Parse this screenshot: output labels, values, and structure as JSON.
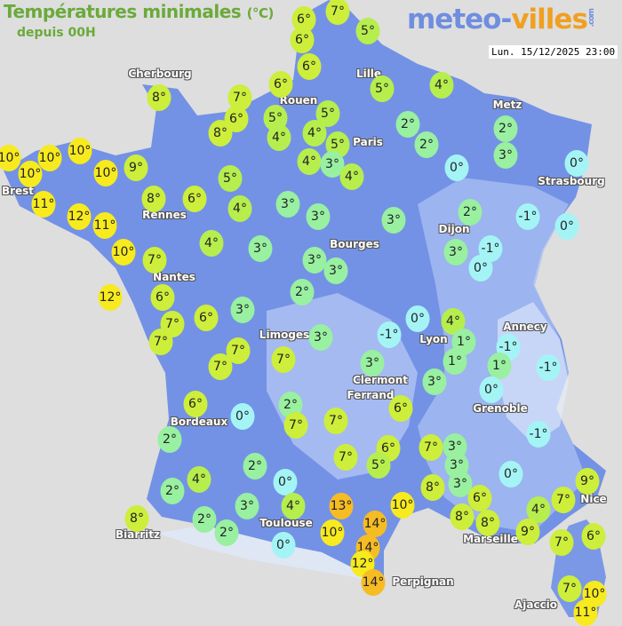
{
  "header": {
    "title": "Températures minimales",
    "unit": "(°C)",
    "subtitle": "depuis 00H",
    "logo_main": "meteo-",
    "logo_accent": "villes",
    "logo_suffix": ".com",
    "timestamp": "Lun. 15/12/2025 23:00"
  },
  "colors": {
    "background": "#dedede",
    "land": "#7392e6",
    "land_light": "#a9bff2",
    "title": "#6aaa3a",
    "scale": {
      "cold": "#a4f4f6",
      "cool": "#98f0a0",
      "mild": "#b6ee4e",
      "warm": "#cdee3a",
      "hot": "#f7ea1e",
      "very_hot": "#f6bc24"
    }
  },
  "cities": [
    "Cherbourg",
    "Lille",
    "Rouen",
    "Metz",
    "Paris",
    "Brest",
    "Strasbourg",
    "Rennes",
    "Dijon",
    "Bourges",
    "Nantes",
    "Annecy",
    "Limoges",
    "Lyon",
    "Clermont",
    "Ferrand",
    "Grenoble",
    "Bordeaux",
    "Toulouse",
    "Biarritz",
    "Marseille",
    "Nice",
    "Perpignan",
    "Ajaccio"
  ],
  "temperatures": [
    7,
    6,
    6,
    5,
    6,
    6,
    7,
    6,
    8,
    5,
    4,
    5,
    5,
    8,
    4,
    4,
    5,
    2,
    2,
    2,
    3,
    4,
    3,
    4,
    0,
    0,
    10,
    10,
    10,
    10,
    10,
    9,
    11,
    12,
    11,
    10,
    7,
    12,
    6,
    7,
    7,
    8,
    6,
    5,
    4,
    3,
    3,
    3,
    2,
    -1,
    0,
    4,
    3,
    3,
    3,
    3,
    -1,
    0,
    2,
    6,
    3,
    0,
    4,
    3,
    -1,
    7,
    7,
    7,
    1,
    -1,
    1,
    1,
    -1,
    3,
    3,
    0,
    6,
    2,
    6,
    0,
    2,
    7,
    7,
    -1,
    6,
    7,
    3,
    7,
    5,
    3,
    2,
    0,
    4,
    0,
    2,
    3,
    8,
    9,
    7,
    6,
    3,
    4,
    13,
    10,
    8,
    8,
    4,
    8,
    2,
    14,
    10,
    2,
    9,
    7,
    6,
    0,
    14,
    12,
    14,
    7,
    10,
    11
  ]
}
